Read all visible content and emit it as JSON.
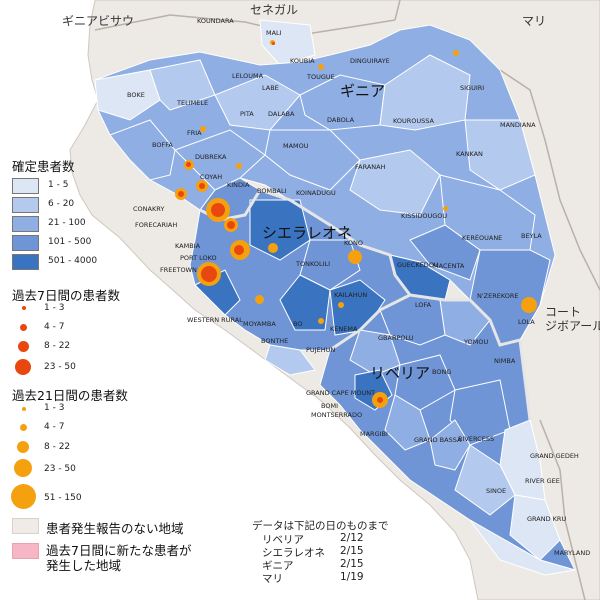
{
  "countries": {
    "guinea_bissau": "ギニアビサウ",
    "senegal": "セネガル",
    "mali": "マリ",
    "guinea": "ギニア",
    "sierra_leone": "シエラレオネ",
    "liberia": "リベリア",
    "cote_divoire": "コート\nジボアール"
  },
  "colors": {
    "sea": "#ffffff",
    "land_outside": "#ede9e4",
    "no_case": "#f0ebe6",
    "c1_5": "#dde6f5",
    "c6_20": "#b4c9ee",
    "c21_100": "#8faee3",
    "c101_500": "#6f95d6",
    "c501_4000": "#3a74c0",
    "new_case_pink": "#f6b6c3",
    "bubble7": "#e8480f",
    "bubble21": "#f5a10f"
  },
  "districts": [
    "KOUNDARA",
    "MALI",
    "KOUBIA",
    "TOUGUE",
    "DINGUIRAYE",
    "SIGUIRI",
    "LELOUMA",
    "LABE",
    "BOKE",
    "TELIMELE",
    "PITA",
    "DALABA",
    "DABOLA",
    "KOUROUSSA",
    "MANDIANA",
    "MAMOU",
    "BOFFA",
    "FRIA",
    "DUBREKA",
    "KINDIA",
    "FARANAH",
    "KANKAN",
    "COYAH",
    "CONAKRY",
    "FORECARIAH",
    "KAMBIA",
    "PORT LOKO",
    "FREETOWN",
    "BOMBALI",
    "KOINADUGU",
    "KISSIDOUGOU",
    "KERÉOUANE",
    "BEYLA",
    "KONO",
    "TONKOLILI",
    "GUECKEDOU",
    "MACENTA",
    "KAILAHUN",
    "KENEMA",
    "WESTERN RURAL",
    "MOYAMBA",
    "BO",
    "BONTHE",
    "PUJEHUN",
    "LOFA",
    "N'ZEREKORE",
    "LOLA",
    "GBARPOLU",
    "YOMOU",
    "NIMBA",
    "BONG",
    "GRAND CAPE MOUNT",
    "BOMI",
    "MONTSERRADO",
    "MARGIBI",
    "GRAND BASSA",
    "RIVERCESS",
    "GRAND GEDEH",
    "SINOE",
    "RIVER GEE",
    "GRAND KRU",
    "MARYLAND"
  ],
  "legend": {
    "confirmed_title": "確定患者数",
    "confirmed_bins": [
      "1 - 5",
      "6 - 20",
      "21 - 100",
      "101 - 500",
      "501 - 4000"
    ],
    "past7_title": "過去7日間の患者数",
    "past7_bins": [
      "1 - 3",
      "4 - 7",
      "8 - 22",
      "23 - 50"
    ],
    "past21_title": "過去21日間の患者数",
    "past21_bins": [
      "1 - 3",
      "4 - 7",
      "8 - 22",
      "23 - 50",
      "51 - 150"
    ],
    "no_case_label": "患者発生報告のない地域",
    "new_case_label_1": "過去7日間に新たな患者が",
    "new_case_label_2": "発生した地域"
  },
  "notes": {
    "title": "データは下記の日のものまで",
    "rows": [
      {
        "country": "リベリア",
        "date": "2/12"
      },
      {
        "country": "シエラレオネ",
        "date": "2/15"
      },
      {
        "country": "ギニア",
        "date": "2/15"
      },
      {
        "country": "マリ",
        "date": "1/19"
      }
    ]
  }
}
